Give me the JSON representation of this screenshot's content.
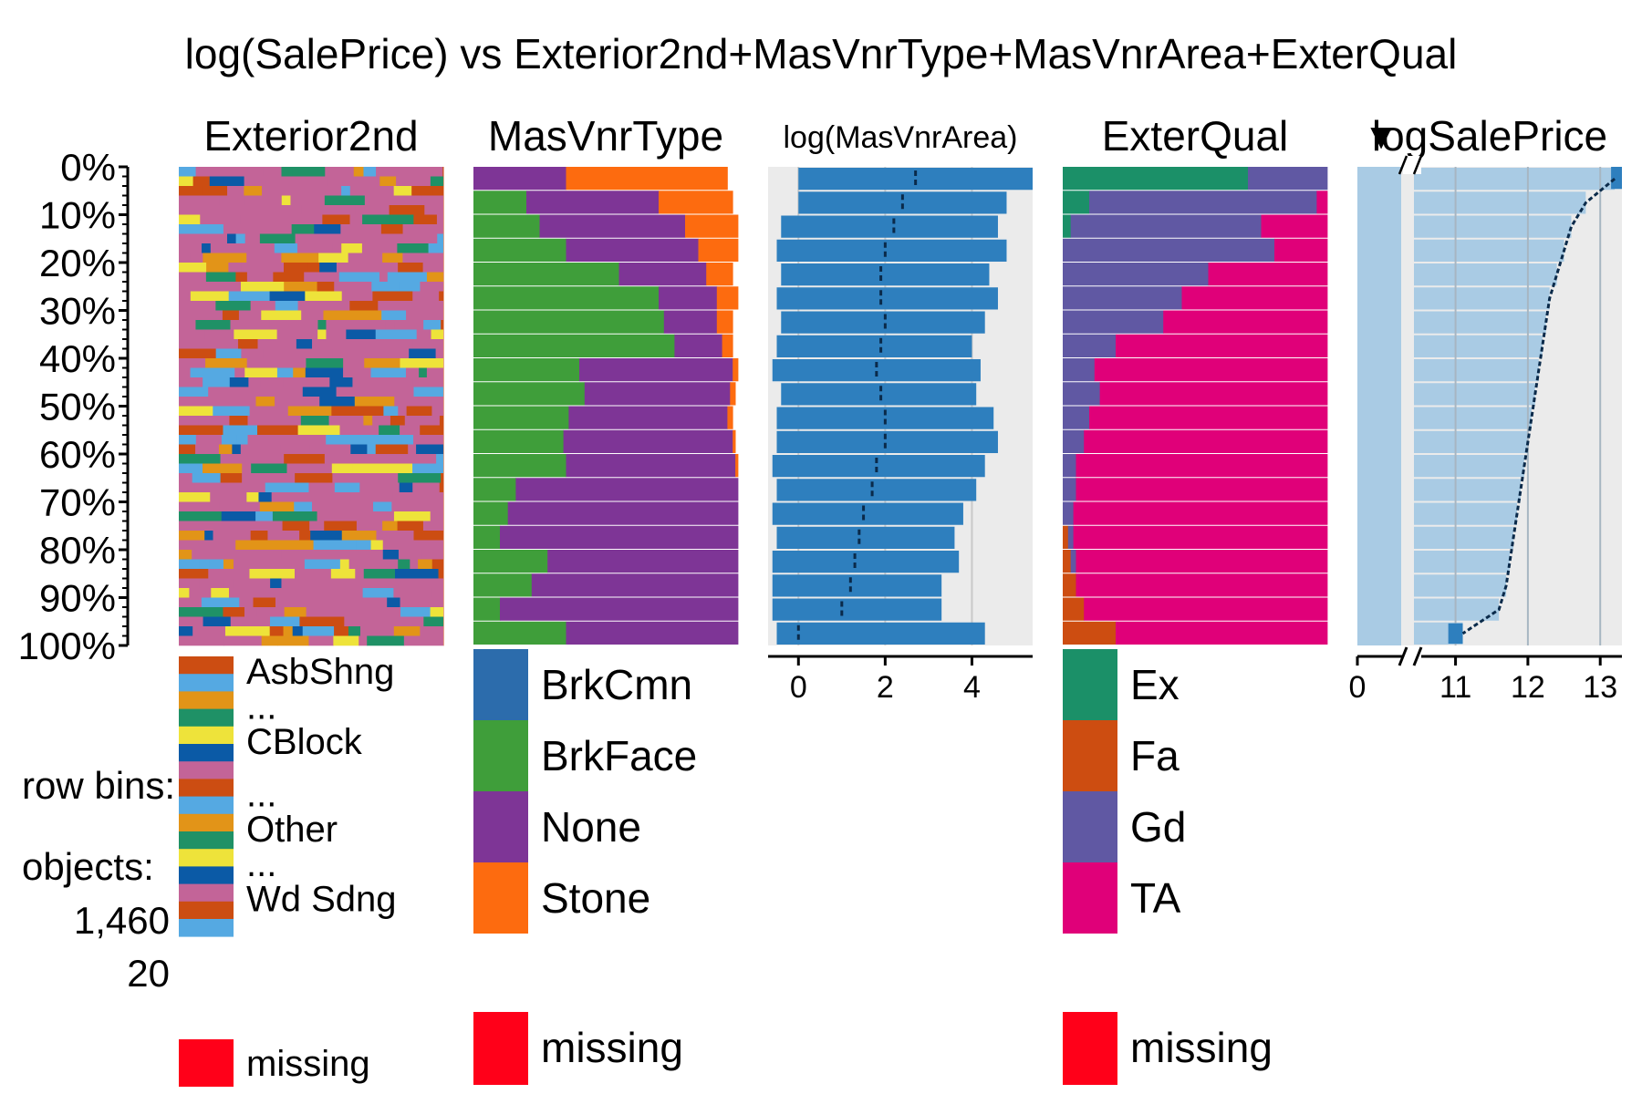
{
  "title": "log(SalePrice) vs Exterior2nd+MasVnrType+MasVnrArea+ExterQual",
  "y_axis": {
    "tick_labels": [
      "0%",
      "10%",
      "20%",
      "30%",
      "40%",
      "50%",
      "60%",
      "70%",
      "80%",
      "90%",
      "100%"
    ]
  },
  "side_info": {
    "row_bins_label": "row bins:",
    "objects_label": "objects:",
    "objects_count": "1,460",
    "bins_count": "20"
  },
  "colors": {
    "missing": "#ff0019",
    "panel_bg": "#ebebeb",
    "numeric_bar": "#2e7fbe",
    "numeric_bar_light": "#a9cbe4",
    "mean_mark": "#0a2a4a"
  },
  "chart_data": [
    {
      "type": "bar",
      "variable": "Exterior2nd",
      "title": "Exterior2nd",
      "legend": [
        {
          "label": "AsbShng",
          "color": "#cc4d12"
        },
        {
          "label": "",
          "color": "#55a9e2"
        },
        {
          "label": "...",
          "color": "#e29418"
        },
        {
          "label": "",
          "color": "#1f9166"
        },
        {
          "label": "CBlock",
          "color": "#eee33a"
        },
        {
          "label": "",
          "color": "#0b5aa6"
        },
        {
          "label": "",
          "color": "#c36498"
        },
        {
          "label": "...",
          "color": "#cc4d12"
        },
        {
          "label": "",
          "color": "#55a9e2"
        },
        {
          "label": "Other",
          "color": "#e29418"
        },
        {
          "label": "",
          "color": "#1f9166"
        },
        {
          "label": "...",
          "color": "#eee33a"
        },
        {
          "label": "",
          "color": "#0b5aa6"
        },
        {
          "label": "Wd Sdng",
          "color": "#c36498"
        },
        {
          "label": "",
          "color": "#cc4d12"
        },
        {
          "label": "",
          "color": "#55a9e2"
        }
      ],
      "missing_label": "missing"
    },
    {
      "type": "bar",
      "variable": "MasVnrType",
      "title": "MasVnrType",
      "legend": [
        {
          "label": "BrkCmn",
          "color": "#2c6cac"
        },
        {
          "label": "BrkFace",
          "color": "#3f9e3a"
        },
        {
          "label": "None",
          "color": "#7e3596"
        },
        {
          "label": "Stone",
          "color": "#fd6b0f"
        }
      ],
      "missing_label": "missing",
      "rows_fractions_note": "stacked proportions per bin (top to bottom)",
      "rows": [
        [
          0.0,
          0.0,
          0.35,
          0.61
        ],
        [
          0.0,
          0.2,
          0.5,
          0.28
        ],
        [
          0.0,
          0.25,
          0.55,
          0.2
        ],
        [
          0.0,
          0.35,
          0.5,
          0.15
        ],
        [
          0.0,
          0.55,
          0.33,
          0.1
        ],
        [
          0.0,
          0.7,
          0.22,
          0.08
        ],
        [
          0.0,
          0.72,
          0.2,
          0.06
        ],
        [
          0.0,
          0.76,
          0.18,
          0.04
        ],
        [
          0.0,
          0.4,
          0.58,
          0.02
        ],
        [
          0.0,
          0.42,
          0.55,
          0.02
        ],
        [
          0.0,
          0.36,
          0.6,
          0.02
        ],
        [
          0.0,
          0.34,
          0.64,
          0.01
        ],
        [
          0.0,
          0.35,
          0.64,
          0.01
        ],
        [
          0.0,
          0.16,
          0.84,
          0.0
        ],
        [
          0.0,
          0.13,
          0.87,
          0.0
        ],
        [
          0.0,
          0.1,
          0.9,
          0.0
        ],
        [
          0.0,
          0.28,
          0.72,
          0.0
        ],
        [
          0.0,
          0.22,
          0.78,
          0.0
        ],
        [
          0.0,
          0.1,
          0.9,
          0.0
        ],
        [
          0.0,
          0.35,
          0.65,
          0.0
        ]
      ]
    },
    {
      "type": "bar",
      "variable": "MasVnrArea",
      "title": "log(MasVnrArea)",
      "xlim": [
        -0.7,
        5.4
      ],
      "x_ticks": [
        0,
        2,
        4
      ],
      "mean": [
        2.7,
        2.4,
        2.2,
        2.0,
        1.9,
        1.9,
        2.0,
        1.9,
        1.8,
        1.9,
        2.0,
        2.0,
        1.8,
        1.7,
        1.5,
        1.4,
        1.3,
        1.2,
        1.0,
        0.0
      ],
      "upper": [
        5.4,
        4.8,
        4.6,
        4.8,
        4.4,
        4.6,
        4.3,
        4.0,
        4.2,
        4.1,
        4.5,
        4.6,
        4.3,
        4.1,
        3.8,
        3.6,
        3.7,
        3.3,
        3.3,
        4.3
      ],
      "lower": [
        0.0,
        0.0,
        -0.4,
        -0.5,
        -0.4,
        -0.5,
        -0.4,
        -0.5,
        -0.6,
        -0.4,
        -0.5,
        -0.5,
        -0.6,
        -0.5,
        -0.6,
        -0.5,
        -0.6,
        -0.6,
        -0.6,
        -0.5
      ]
    },
    {
      "type": "bar",
      "variable": "ExterQual",
      "title": "ExterQual",
      "legend": [
        {
          "label": "Ex",
          "color": "#1b9068"
        },
        {
          "label": "Fa",
          "color": "#cd4d11"
        },
        {
          "label": "Gd",
          "color": "#6058a3"
        },
        {
          "label": "TA",
          "color": "#e00079"
        }
      ],
      "missing_label": "missing",
      "rows": [
        [
          0.7,
          0.0,
          0.3,
          0.0
        ],
        [
          0.1,
          0.0,
          0.86,
          0.04
        ],
        [
          0.03,
          0.0,
          0.72,
          0.25
        ],
        [
          0.0,
          0.0,
          0.8,
          0.2
        ],
        [
          0.0,
          0.0,
          0.55,
          0.45
        ],
        [
          0.0,
          0.0,
          0.45,
          0.55
        ],
        [
          0.0,
          0.0,
          0.38,
          0.62
        ],
        [
          0.0,
          0.0,
          0.2,
          0.8
        ],
        [
          0.0,
          0.0,
          0.12,
          0.88
        ],
        [
          0.0,
          0.0,
          0.14,
          0.86
        ],
        [
          0.0,
          0.0,
          0.1,
          0.9
        ],
        [
          0.0,
          0.0,
          0.08,
          0.92
        ],
        [
          0.0,
          0.0,
          0.05,
          0.95
        ],
        [
          0.0,
          0.0,
          0.05,
          0.95
        ],
        [
          0.0,
          0.0,
          0.04,
          0.96
        ],
        [
          0.0,
          0.02,
          0.02,
          0.96
        ],
        [
          0.0,
          0.03,
          0.02,
          0.95
        ],
        [
          0.0,
          0.05,
          0.0,
          0.95
        ],
        [
          0.0,
          0.08,
          0.0,
          0.92
        ],
        [
          0.0,
          0.2,
          0.0,
          0.8
        ]
      ]
    },
    {
      "type": "line",
      "variable": "logSalePrice",
      "title": "logSalePrice",
      "sort_indicator": "▼",
      "x_ticks": [
        0,
        11,
        12,
        13
      ],
      "axis_break": true,
      "xlim": [
        10.4,
        13.3
      ],
      "values": [
        13.2,
        12.8,
        12.6,
        12.5,
        12.4,
        12.3,
        12.25,
        12.2,
        12.15,
        12.1,
        12.05,
        12.0,
        11.95,
        11.9,
        11.85,
        11.8,
        11.75,
        11.7,
        11.6,
        11.1
      ]
    }
  ]
}
